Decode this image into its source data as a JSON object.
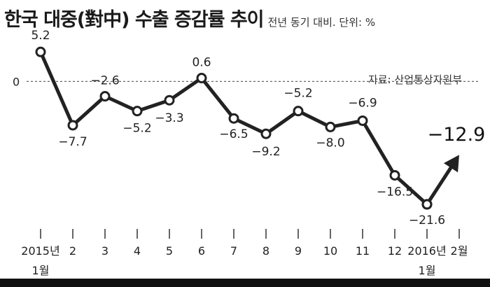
{
  "title": "한국 대중(對中) 수출 증감률 추이",
  "subtitle": "전년 동기 대비. 단위: %",
  "source": "자료: 산업통상자원부",
  "colors": {
    "line": "#222222",
    "zero_line": "#666666",
    "background": "#ffffff"
  },
  "chart_data": {
    "type": "line",
    "title": "한국 대중(對中) 수출 증감률 추이",
    "subtitle": "전년 동기 대비. 단위: %",
    "zero_label": "0",
    "categories": [
      "2015년 1월",
      "2",
      "3",
      "4",
      "5",
      "6",
      "7",
      "8",
      "9",
      "10",
      "11",
      "12",
      "2016년 1월",
      "2월"
    ],
    "x_tick_lines": [
      [
        "2015년",
        "1월"
      ],
      [
        "2"
      ],
      [
        "3"
      ],
      [
        "4"
      ],
      [
        "5"
      ],
      [
        "6"
      ],
      [
        "7"
      ],
      [
        "8"
      ],
      [
        "9"
      ],
      [
        "10"
      ],
      [
        "11"
      ],
      [
        "12"
      ],
      [
        "2016년",
        "1월"
      ],
      [
        "2월"
      ]
    ],
    "series": [
      {
        "values": [
          5.2,
          -7.7,
          -2.6,
          -5.2,
          -3.3,
          0.6,
          -6.5,
          -9.2,
          -5.2,
          -8.0,
          -6.9,
          -16.5,
          -21.6,
          -12.9
        ],
        "labels": [
          "5.2",
          "−7.7",
          "−2.6",
          "−5.2",
          "−3.3",
          "0.6",
          "−6.5",
          "−9.2",
          "−5.2",
          "−8.0",
          "−6.9",
          "−16.5",
          "−21.6",
          "−12.9"
        ]
      }
    ],
    "ylim": [
      -24,
      8
    ],
    "dashed_zero_line": true,
    "last_point_arrow": true
  }
}
